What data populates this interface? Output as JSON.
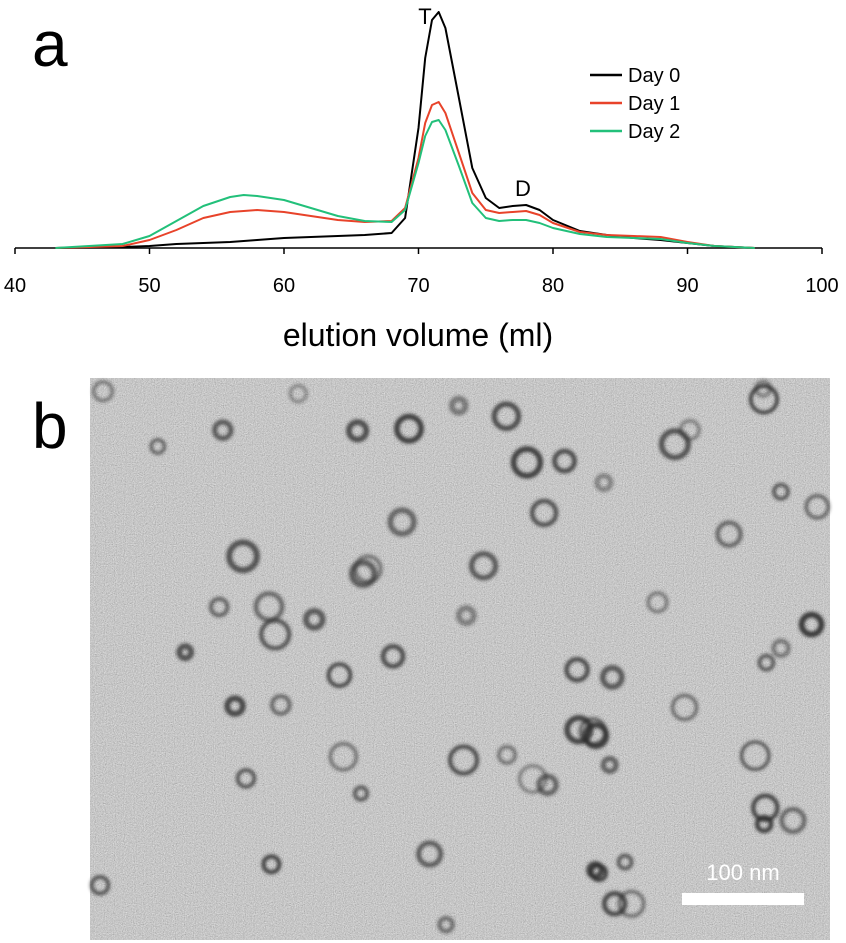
{
  "panel_labels": [
    "a",
    "b"
  ],
  "chart_data": {
    "type": "line",
    "xlabel": "elution volume (ml)",
    "annotations": [
      "T",
      "D"
    ],
    "x": [
      43,
      48,
      50,
      52,
      54,
      56,
      57,
      58,
      60,
      62,
      64,
      66,
      68,
      69,
      70,
      70.5,
      71,
      71.5,
      72,
      73,
      74,
      75,
      76,
      77,
      78,
      79,
      80,
      82,
      84,
      86,
      88,
      90,
      92,
      95
    ],
    "series": [
      {
        "name": "Day 0",
        "color": "#000000",
        "values": [
          0,
          1,
          2,
          4,
          5,
          6,
          7,
          8,
          10,
          11,
          12,
          13,
          15,
          30,
          120,
          190,
          228,
          236,
          220,
          150,
          80,
          50,
          40,
          42,
          43,
          38,
          28,
          17,
          13,
          10,
          8,
          5,
          2,
          0
        ]
      },
      {
        "name": "Day 1",
        "color": "#e8432a",
        "values": [
          0,
          2,
          8,
          18,
          30,
          36,
          37,
          38,
          36,
          32,
          28,
          26,
          27,
          40,
          90,
          125,
          143,
          146,
          135,
          95,
          55,
          38,
          35,
          36,
          37,
          33,
          25,
          16,
          13,
          12,
          11,
          6,
          2,
          0
        ]
      },
      {
        "name": "Day 2",
        "color": "#22c07a",
        "values": [
          0,
          4,
          12,
          27,
          42,
          51,
          53,
          52,
          48,
          40,
          32,
          27,
          26,
          38,
          85,
          112,
          126,
          128,
          118,
          82,
          45,
          30,
          27,
          28,
          28,
          25,
          20,
          14,
          11,
          10,
          9,
          5,
          2,
          0
        ]
      }
    ],
    "xlim": [
      40,
      100
    ],
    "xticks": [
      40,
      50,
      60,
      70,
      80,
      90,
      100
    ],
    "ylim": [
      0,
      240
    ],
    "legend": "upper right"
  },
  "image": {
    "scale_bar": "100 nm"
  }
}
